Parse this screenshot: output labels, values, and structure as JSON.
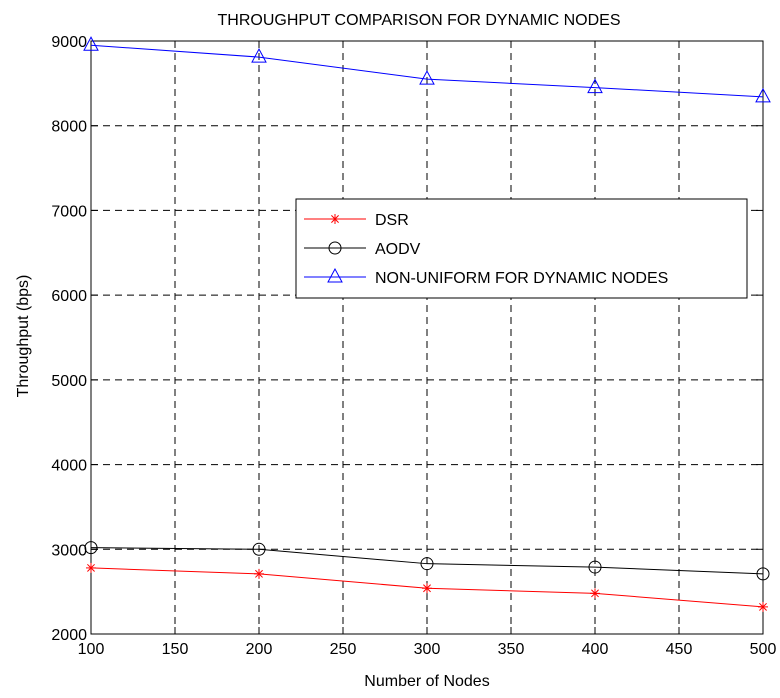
{
  "chart_data": {
    "type": "line",
    "title": "THROUGHPUT COMPARISON FOR DYNAMIC NODES",
    "xlabel": "Number of Nodes",
    "ylabel": "Throughput (bps)",
    "xlim": [
      100,
      500
    ],
    "ylim": [
      2000,
      9000
    ],
    "xticks": [
      100,
      150,
      200,
      250,
      300,
      350,
      400,
      450,
      500
    ],
    "yticks": [
      2000,
      3000,
      4000,
      5000,
      6000,
      7000,
      8000,
      9000
    ],
    "grid": true,
    "legend_position": "center-right",
    "x": [
      100,
      200,
      300,
      400,
      500
    ],
    "series": [
      {
        "name": "DSR",
        "color": "#ff0000",
        "marker": "asterisk",
        "values": [
          2780,
          2710,
          2540,
          2480,
          2320
        ]
      },
      {
        "name": "AODV",
        "color": "#000000",
        "marker": "circle",
        "values": [
          3020,
          3000,
          2830,
          2790,
          2710
        ]
      },
      {
        "name": "NON-UNIFORM FOR DYNAMIC NODES",
        "color": "#0000ff",
        "marker": "triangle",
        "values": [
          8950,
          8810,
          8550,
          8450,
          8340
        ]
      }
    ]
  }
}
